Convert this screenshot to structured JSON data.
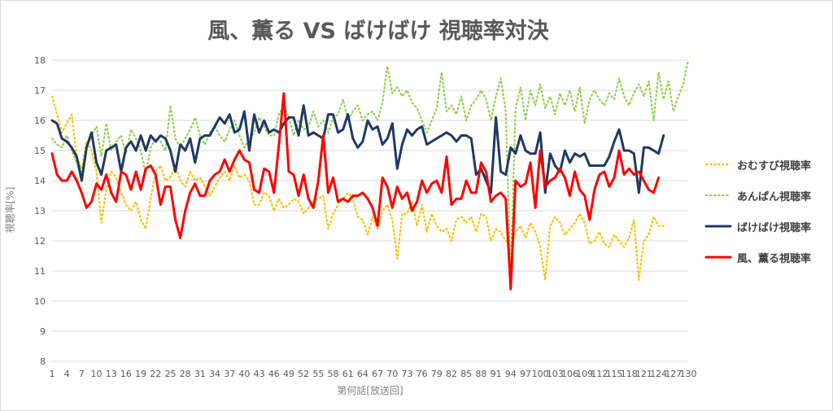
{
  "chart_data": {
    "type": "line",
    "title": "風、薫る VS ばけばけ 視聴率対決",
    "xlabel": "第何話[放送回]",
    "ylabel": "視聴率[%]",
    "ylim": [
      8,
      18
    ],
    "yticks": [
      8,
      9,
      10,
      11,
      12,
      13,
      14,
      15,
      16,
      17,
      18
    ],
    "xlim": [
      1,
      130
    ],
    "xticks": [
      1,
      4,
      7,
      10,
      13,
      16,
      19,
      22,
      25,
      28,
      31,
      34,
      37,
      40,
      43,
      46,
      49,
      52,
      55,
      58,
      61,
      64,
      67,
      70,
      73,
      76,
      79,
      82,
      85,
      88,
      91,
      94,
      97,
      100,
      103,
      106,
      109,
      112,
      115,
      118,
      121,
      124,
      127,
      130
    ],
    "grid": true,
    "legend_position": "right",
    "series": [
      {
        "name": "おむすび視聴率",
        "color": "#FFC000",
        "style": "dotted",
        "values": [
          16.8,
          16.2,
          15.6,
          15.9,
          16.2,
          14.8,
          14.4,
          15.3,
          15.0,
          14.3,
          12.6,
          13.7,
          14.3,
          14.1,
          13.6,
          13.2,
          13.0,
          13.3,
          12.7,
          12.4,
          13.4,
          14.3,
          14.5,
          14.0,
          14.1,
          14.5,
          14.0,
          13.8,
          14.3,
          14.0,
          14.1,
          13.8,
          13.5,
          13.8,
          14.1,
          14.3,
          14.0,
          14.5,
          14.1,
          14.2,
          14.0,
          13.2,
          13.2,
          13.6,
          13.5,
          13.0,
          13.4,
          13.1,
          13.2,
          13.4,
          13.3,
          12.9,
          13.1,
          13.3,
          13.4,
          13.5,
          12.4,
          12.9,
          13.2,
          13.4,
          13.6,
          13.4,
          12.8,
          12.7,
          12.2,
          12.8,
          12.4,
          13.0,
          13.2,
          12.7,
          11.4,
          12.9,
          12.9,
          13.3,
          12.5,
          13.2,
          12.3,
          12.9,
          12.5,
          12.3,
          12.4,
          12.0,
          12.7,
          12.8,
          12.6,
          12.8,
          12.3,
          12.9,
          12.8,
          12.0,
          12.4,
          12.3,
          12.0,
          11.8,
          12.3,
          12.5,
          12.1,
          12.6,
          12.3,
          11.8,
          10.7,
          12.5,
          12.8,
          12.6,
          12.2,
          12.4,
          12.6,
          12.9,
          12.6,
          11.9,
          12.0,
          12.3,
          11.9,
          11.8,
          12.2,
          12.0,
          11.8,
          12.1,
          12.7,
          10.7,
          12.0,
          12.2,
          12.8,
          12.5,
          12.5
        ]
      },
      {
        "name": "あんぱん視聴率",
        "color": "#92D050",
        "style": "dotted",
        "values": [
          15.4,
          15.2,
          15.1,
          15.5,
          15.0,
          14.6,
          14.3,
          15.1,
          15.5,
          15.8,
          14.8,
          15.9,
          15.0,
          15.3,
          15.5,
          14.9,
          15.7,
          15.4,
          15.0,
          14.2,
          15.1,
          15.4,
          15.3,
          15.0,
          16.5,
          15.4,
          15.1,
          15.4,
          15.7,
          16.1,
          15.5,
          15.2,
          15.6,
          15.8,
          15.5,
          15.3,
          15.7,
          16.0,
          15.5,
          15.1,
          15.4,
          15.6,
          16.1,
          15.8,
          15.5,
          15.5,
          16.2,
          16.5,
          16.1,
          15.5,
          16.0,
          15.7,
          15.8,
          16.3,
          15.8,
          16.0,
          15.6,
          16.1,
          16.2,
          16.7,
          16.0,
          16.3,
          16.5,
          16.0,
          16.2,
          16.3,
          16.0,
          16.6,
          17.8,
          16.9,
          17.1,
          16.8,
          17.0,
          16.6,
          16.4,
          16.0,
          15.6,
          16.0,
          16.4,
          17.6,
          16.3,
          16.5,
          16.2,
          16.8,
          16.0,
          16.5,
          16.7,
          17.0,
          16.7,
          16.0,
          16.8,
          17.4,
          16.3,
          10.9,
          16.4,
          17.1,
          16.0,
          17.0,
          16.5,
          17.2,
          16.4,
          16.8,
          16.2,
          16.9,
          16.5,
          17.0,
          16.3,
          17.1,
          15.9,
          16.7,
          17.0,
          16.7,
          16.5,
          16.9,
          16.7,
          17.4,
          16.8,
          16.5,
          16.9,
          17.2,
          16.8,
          17.3,
          16.0,
          17.6,
          16.7,
          17.3,
          16.3,
          16.8,
          17.2,
          18.0
        ]
      },
      {
        "name": "ばけばけ視聴率",
        "color": "#203864",
        "style": "solid",
        "values": [
          16.0,
          15.9,
          15.4,
          15.3,
          15.1,
          14.8,
          14.0,
          15.1,
          15.6,
          14.6,
          14.2,
          15.0,
          15.1,
          15.2,
          14.3,
          15.1,
          15.3,
          15.0,
          15.5,
          15.0,
          15.5,
          15.3,
          15.5,
          15.4,
          15.0,
          14.3,
          15.2,
          15.0,
          15.4,
          14.6,
          15.4,
          15.5,
          15.5,
          15.8,
          16.1,
          15.9,
          16.2,
          15.6,
          15.7,
          16.3,
          15.0,
          16.2,
          15.6,
          16.0,
          15.6,
          15.7,
          15.6,
          15.9,
          16.1,
          16.1,
          15.5,
          16.5,
          15.5,
          15.6,
          15.5,
          15.4,
          16.2,
          16.2,
          15.6,
          15.7,
          16.2,
          15.4,
          15.1,
          15.3,
          16.0,
          15.7,
          15.8,
          15.2,
          15.4,
          15.9,
          14.4,
          15.2,
          15.7,
          15.5,
          15.7,
          15.8,
          15.2,
          15.3,
          15.4,
          15.5,
          15.6,
          15.5,
          15.3,
          15.5,
          15.5,
          15.4,
          14.2,
          14.4,
          14.0,
          13.6,
          16.1,
          14.3,
          14.2,
          15.1,
          14.9,
          15.5,
          15.0,
          14.9,
          14.9,
          15.6,
          13.6,
          14.9,
          14.5,
          14.3,
          15.0,
          14.6,
          14.9,
          14.8,
          14.9,
          14.5,
          14.5,
          14.5,
          14.5,
          14.8,
          15.3,
          15.7,
          15.0,
          15.0,
          14.9,
          13.6,
          15.1,
          15.1,
          15.0,
          14.9,
          15.5
        ]
      },
      {
        "name": "風、薫る視聴率",
        "color": "#FF0000",
        "style": "solid",
        "values": [
          14.9,
          14.2,
          14.0,
          14.0,
          14.3,
          14.0,
          13.6,
          13.1,
          13.3,
          13.9,
          13.7,
          14.2,
          13.6,
          13.3,
          14.3,
          14.2,
          13.7,
          14.3,
          13.7,
          14.4,
          14.5,
          14.2,
          13.2,
          13.8,
          13.8,
          12.7,
          12.1,
          13.0,
          13.6,
          13.9,
          13.5,
          13.5,
          14.0,
          14.2,
          14.3,
          14.7,
          14.3,
          14.7,
          15.0,
          14.7,
          14.6,
          13.7,
          13.6,
          14.4,
          14.3,
          13.6,
          15.2,
          16.9,
          14.3,
          14.2,
          13.5,
          14.2,
          13.4,
          13.1,
          14.0,
          15.5,
          13.6,
          14.1,
          13.3,
          13.4,
          13.3,
          13.5,
          13.5,
          13.6,
          13.4,
          13.1,
          12.5,
          14.1,
          13.8,
          13.1,
          13.8,
          13.4,
          13.6,
          13.0,
          13.3,
          14.0,
          13.6,
          13.9,
          14.0,
          13.6,
          14.8,
          13.2,
          13.4,
          13.4,
          14.0,
          13.6,
          13.6,
          14.6,
          14.3,
          13.3,
          13.5,
          13.6,
          13.4,
          10.4,
          14.0,
          13.8,
          13.9,
          14.6,
          13.1,
          15.0,
          13.8,
          14.0,
          14.1,
          14.4,
          14.1,
          13.5,
          14.3,
          13.7,
          13.5,
          12.7,
          13.7,
          14.2,
          14.3,
          13.8,
          14.1,
          15.0,
          14.2,
          14.4,
          14.2,
          14.3,
          14.0,
          13.7,
          13.6,
          14.1
        ]
      }
    ]
  }
}
